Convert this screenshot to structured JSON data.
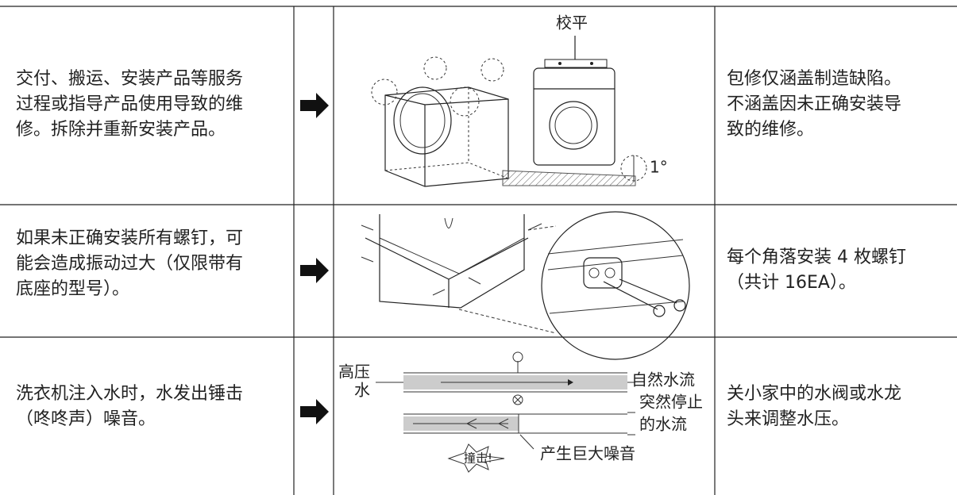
{
  "rows": [
    {
      "problem": [
        "交付、搬运、安装产品等服务",
        "过程或指导产品使用导致的维",
        "修。拆除并重新安装产品。"
      ],
      "figure": {
        "labels": [
          "校平",
          "1°"
        ]
      },
      "solution": [
        "包修仅涵盖制造缺陷。",
        "不涵盖因未正确安装导",
        "致的维修。"
      ]
    },
    {
      "problem": [
        "如果未正确安装所有螺钉，可",
        "能会造成振动过大（仅限带有",
        "底座的型号）。"
      ],
      "solution": [
        "每个角落安装 4 枚螺钉",
        "（共计 16EA）。"
      ]
    },
    {
      "problem": [
        "洗衣机注入水时，水发出锤击",
        "（咚咚声）噪音。"
      ],
      "figure": {
        "labels": [
          "高压",
          "水",
          "自然水流",
          "突然停止",
          "的水流",
          "撞击!",
          "产生巨大噪音"
        ]
      },
      "solution": [
        "关小家中的水阀或水龙",
        "头来调整水压。"
      ]
    }
  ]
}
